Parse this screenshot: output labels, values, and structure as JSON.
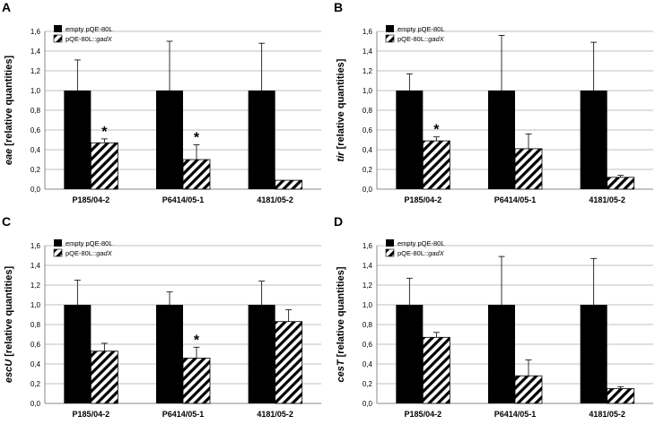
{
  "chart_data": [
    {
      "panel_label": "A",
      "type": "bar",
      "ylabel_italic": "eae",
      "ylabel_rest": " [relative quantities]",
      "categories": [
        "P185/04-2",
        "P6414/05-1",
        "4181/05-2"
      ],
      "series": [
        {
          "name": "empty pQE-80L",
          "values": [
            1.0,
            1.0,
            1.0
          ],
          "error": [
            0.31,
            0.5,
            0.48
          ]
        },
        {
          "name": "pQE-80L::gadX",
          "values": [
            0.47,
            0.3,
            0.09
          ],
          "error": [
            0.04,
            0.15,
            0.0
          ]
        }
      ],
      "significance": [
        {
          "category": 0,
          "series": 1,
          "text": "*"
        },
        {
          "category": 1,
          "series": 1,
          "text": "*"
        }
      ],
      "ylim": [
        0,
        1.6
      ],
      "yticks": [
        "0,0",
        "0,2",
        "0,4",
        "0,6",
        "0,8",
        "1,0",
        "1,2",
        "1,4",
        "1,6"
      ],
      "legend_position": "top-left"
    },
    {
      "panel_label": "B",
      "type": "bar",
      "ylabel_italic": "tir",
      "ylabel_rest": " [relative quantities]",
      "categories": [
        "P185/04-2",
        "P6414/05-1",
        "4181/05-2"
      ],
      "series": [
        {
          "name": "empty pQE-80L",
          "values": [
            1.0,
            1.0,
            1.0
          ],
          "error": [
            0.17,
            0.56,
            0.49
          ]
        },
        {
          "name": "pQE-80L::gadX",
          "values": [
            0.49,
            0.41,
            0.12
          ],
          "error": [
            0.04,
            0.15,
            0.02
          ]
        }
      ],
      "significance": [
        {
          "category": 0,
          "series": 1,
          "text": "*"
        }
      ],
      "ylim": [
        0,
        1.6
      ],
      "yticks": [
        "0,0",
        "0,2",
        "0,4",
        "0,6",
        "0,8",
        "1,0",
        "1,2",
        "1,4",
        "1,6"
      ],
      "legend_position": "top-left"
    },
    {
      "panel_label": "C",
      "type": "bar",
      "ylabel_italic": "escU",
      "ylabel_rest": " [relative quantities]",
      "categories": [
        "P185/04-2",
        "P6414/05-1",
        "4181/05-2"
      ],
      "series": [
        {
          "name": "empty pQE-80L",
          "values": [
            1.0,
            1.0,
            1.0
          ],
          "error": [
            0.25,
            0.13,
            0.24
          ]
        },
        {
          "name": "pQE-80L::gadX",
          "values": [
            0.53,
            0.46,
            0.83
          ],
          "error": [
            0.08,
            0.11,
            0.12
          ]
        }
      ],
      "significance": [
        {
          "category": 1,
          "series": 1,
          "text": "*"
        }
      ],
      "ylim": [
        0,
        1.6
      ],
      "yticks": [
        "0,0",
        "0,2",
        "0,4",
        "0,6",
        "0,8",
        "1,0",
        "1,2",
        "1,4",
        "1,6"
      ],
      "legend_position": "top-left"
    },
    {
      "panel_label": "D",
      "type": "bar",
      "ylabel_italic": "cesT",
      "ylabel_rest": " [relative quantities]",
      "categories": [
        "P185/04-2",
        "P6414/05-1",
        "4181/05-2"
      ],
      "series": [
        {
          "name": "empty pQE-80L",
          "values": [
            1.0,
            1.0,
            1.0
          ],
          "error": [
            0.27,
            0.49,
            0.47
          ]
        },
        {
          "name": "pQE-80L::gadX",
          "values": [
            0.67,
            0.28,
            0.15
          ],
          "error": [
            0.05,
            0.16,
            0.02
          ]
        }
      ],
      "significance": [],
      "ylim": [
        0,
        1.6
      ],
      "yticks": [
        "0,0",
        "0,2",
        "0,4",
        "0,6",
        "0,8",
        "1,0",
        "1,2",
        "1,4",
        "1,6"
      ],
      "legend_position": "top-left"
    }
  ],
  "legend": {
    "empty_label": "empty pQE-80L",
    "gadx_prefix": "pQE-80L::",
    "gadx_italic": "gadX"
  },
  "colors": {
    "empty_bar": "#000000",
    "hatch": "#000000",
    "grid": "#bfbfbf"
  }
}
